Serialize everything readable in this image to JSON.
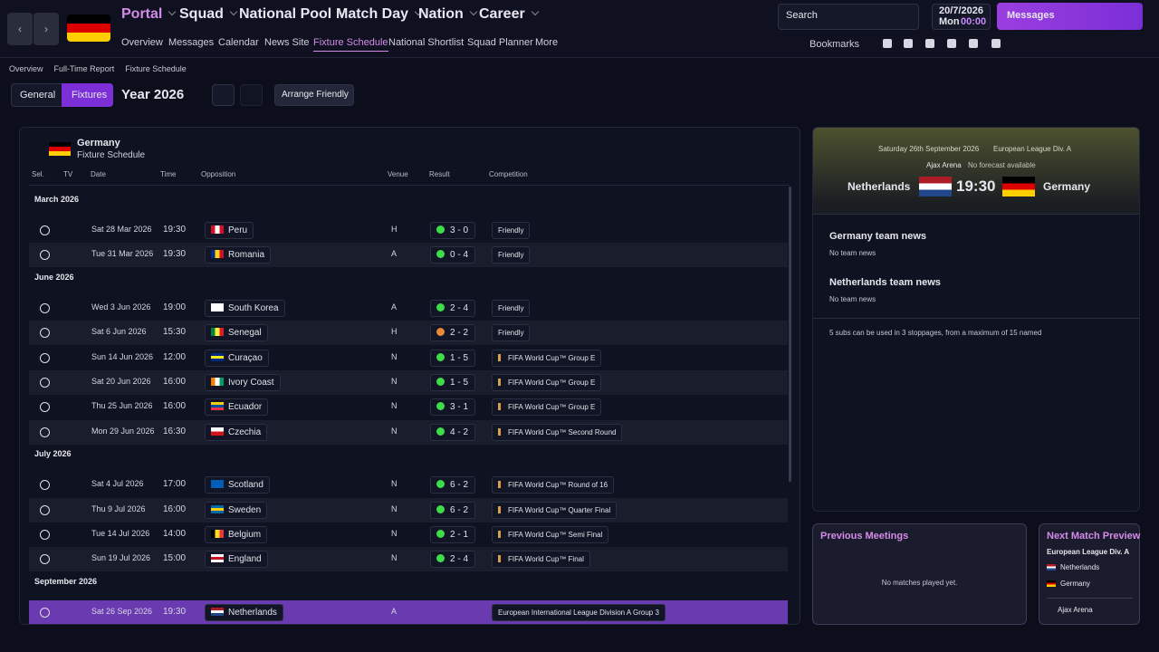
{
  "nav": {
    "tabs": [
      "Portal",
      "Squad",
      "National Pool",
      "Match Day",
      "Nation",
      "Career"
    ],
    "subnav": [
      "Overview",
      "Messages",
      "Calendar",
      "News Site",
      "Fixture Schedule",
      "National Shortlist",
      "Squad Planner",
      "More"
    ],
    "active_subnav": 4,
    "search": "Search",
    "date": "20/7/2026",
    "day": "Mon",
    "time": "00:00",
    "messages": "Messages",
    "bookmarks": "Bookmarks"
  },
  "breadcrumb": [
    "Overview",
    "Full-Time Report",
    "Fixture Schedule"
  ],
  "toolbar": {
    "tabs": [
      "General",
      "Fixtures"
    ],
    "active_tab": 1,
    "year": "Year 2026",
    "arrange": "Arrange Friendly"
  },
  "fixtures": {
    "team": "Germany",
    "subtitle": "Fixture Schedule",
    "columns": [
      "Sel.",
      "TV",
      "Date",
      "Time",
      "Opposition",
      "Venue",
      "Result",
      "Competition"
    ],
    "groups": [
      {
        "month": "March 2026",
        "rows": [
          {
            "date": "Sat 28 Mar 2026",
            "time": "19:30",
            "opposition": "Peru",
            "flag": {
              "dir": "v",
              "colors": [
                "#d91023",
                "#ffffff",
                "#d91023"
              ]
            },
            "venue": "H",
            "result": "3 - 0",
            "result_color": "#3ddc4a",
            "competition": "Friendly"
          },
          {
            "date": "Tue 31 Mar 2026",
            "time": "19:30",
            "opposition": "Romania",
            "flag": {
              "dir": "v",
              "colors": [
                "#002b7f",
                "#fcd116",
                "#ce1126"
              ]
            },
            "venue": "A",
            "result": "0 - 4",
            "result_color": "#3ddc4a",
            "competition": "Friendly"
          }
        ]
      },
      {
        "month": "June 2026",
        "rows": [
          {
            "date": "Wed 3 Jun 2026",
            "time": "19:00",
            "opposition": "South Korea",
            "flag": {
              "dir": "h",
              "colors": [
                "#ffffff"
              ]
            },
            "venue": "A",
            "result": "2 - 4",
            "result_color": "#3ddc4a",
            "competition": "Friendly"
          },
          {
            "date": "Sat 6 Jun 2026",
            "time": "15:30",
            "opposition": "Senegal",
            "flag": {
              "dir": "v",
              "colors": [
                "#00853f",
                "#fdef42",
                "#e31b23"
              ]
            },
            "venue": "H",
            "result": "2 - 2",
            "result_color": "#e8883a",
            "competition": "Friendly"
          },
          {
            "date": "Sun 14 Jun 2026",
            "time": "12:00",
            "opposition": "Curaçao",
            "flag": {
              "dir": "h",
              "colors": [
                "#002b7f",
                "#f9e814",
                "#002b7f"
              ]
            },
            "venue": "N",
            "result": "1 - 5",
            "result_color": "#3ddc4a",
            "competition": "FIFA World Cup™ Group E",
            "icon": "trophy"
          },
          {
            "date": "Sat 20 Jun 2026",
            "time": "16:00",
            "opposition": "Ivory Coast",
            "flag": {
              "dir": "v",
              "colors": [
                "#f77f00",
                "#ffffff",
                "#009e60"
              ]
            },
            "venue": "N",
            "result": "1 - 5",
            "result_color": "#3ddc4a",
            "competition": "FIFA World Cup™ Group E",
            "icon": "trophy"
          },
          {
            "date": "Thu 25 Jun 2026",
            "time": "16:00",
            "opposition": "Ecuador",
            "flag": {
              "dir": "h",
              "colors": [
                "#ffd100",
                "#034ea2",
                "#ef3340"
              ]
            },
            "venue": "N",
            "result": "3 - 1",
            "result_color": "#3ddc4a",
            "competition": "FIFA World Cup™ Group E",
            "icon": "trophy"
          },
          {
            "date": "Mon 29 Jun 2026",
            "time": "16:30",
            "opposition": "Czechia",
            "flag": {
              "dir": "h",
              "colors": [
                "#ffffff",
                "#d7141a"
              ]
            },
            "venue": "N",
            "result": "4 - 2",
            "result_color": "#3ddc4a",
            "competition": "FIFA World Cup™ Second Round",
            "icon": "trophy"
          }
        ]
      },
      {
        "month": "July 2026",
        "rows": [
          {
            "date": "Sat 4 Jul 2026",
            "time": "17:00",
            "opposition": "Scotland",
            "flag": {
              "dir": "h",
              "colors": [
                "#005eb8"
              ]
            },
            "venue": "N",
            "result": "6 - 2",
            "result_color": "#3ddc4a",
            "competition": "FIFA World Cup™ Round of 16",
            "icon": "trophy"
          },
          {
            "date": "Thu 9 Jul 2026",
            "time": "16:00",
            "opposition": "Sweden",
            "flag": {
              "dir": "h",
              "colors": [
                "#006aa7",
                "#fecc00",
                "#006aa7"
              ]
            },
            "venue": "N",
            "result": "6 - 2",
            "result_color": "#3ddc4a",
            "competition": "FIFA World Cup™ Quarter Final",
            "icon": "trophy"
          },
          {
            "date": "Tue 14 Jul 2026",
            "time": "14:00",
            "opposition": "Belgium",
            "flag": {
              "dir": "v",
              "colors": [
                "#000000",
                "#fdda24",
                "#ef3340"
              ]
            },
            "venue": "N",
            "result": "2 - 1",
            "result_color": "#3ddc4a",
            "competition": "FIFA World Cup™ Semi Final",
            "icon": "trophy"
          },
          {
            "date": "Sun 19 Jul 2026",
            "time": "15:00",
            "opposition": "England",
            "flag": {
              "dir": "h",
              "colors": [
                "#ffffff",
                "#ce1124",
                "#ffffff"
              ]
            },
            "venue": "N",
            "result": "2 - 4",
            "result_color": "#3ddc4a",
            "competition": "FIFA World Cup™ Final",
            "icon": "trophy"
          }
        ]
      },
      {
        "month": "September 2026",
        "rows": [
          {
            "date": "Sat 26 Sep 2026",
            "time": "19:30",
            "opposition": "Netherlands",
            "flag": {
              "dir": "h",
              "colors": [
                "#ae1c28",
                "#ffffff",
                "#21468b"
              ]
            },
            "venue": "A",
            "competition": "European International League Division A Group 3",
            "selected": true
          }
        ]
      }
    ]
  },
  "match_card": {
    "date": "Saturday 26th September 2026",
    "competition": "European League Div. A",
    "stadium": "Ajax Arena",
    "forecast": "No forecast available",
    "home": "Netherlands",
    "time": "19:30",
    "away": "Germany",
    "news": [
      {
        "title": "Germany team news",
        "text": "No team news"
      },
      {
        "title": "Netherlands team news",
        "text": "No team news"
      }
    ],
    "subs": "5 subs can be used in 3 stoppages, from a maximum of 15 named"
  },
  "previous_meetings": {
    "title": "Previous Meetings",
    "text": "No matches played yet."
  },
  "next_match": {
    "title": "Next Match Preview",
    "competition": "European League Div. A",
    "teams": [
      "Netherlands",
      "Germany"
    ],
    "venue": "Ajax Arena"
  }
}
